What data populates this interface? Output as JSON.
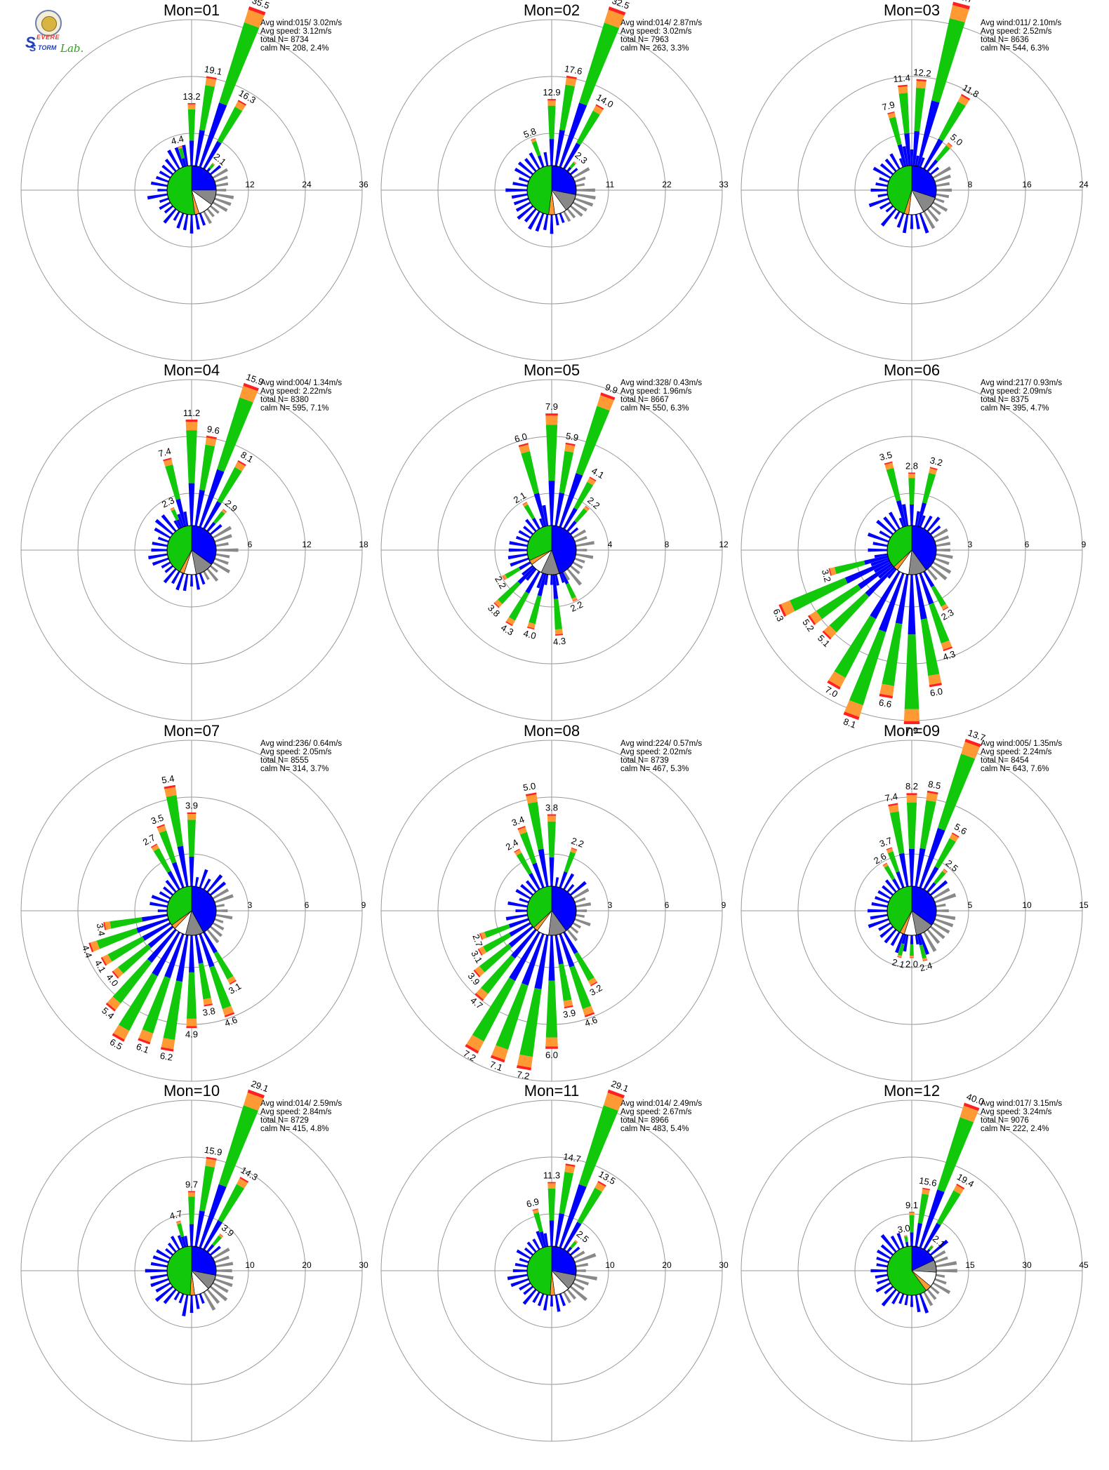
{
  "logo": {
    "s1": "S",
    "w1": "EVERE",
    "s2": "S",
    "w2": "TORM",
    "lab": "Lab."
  },
  "colors": {
    "blue": "#0000ff",
    "green": "#12c80a",
    "orange": "#ff9933",
    "red": "#ff2020",
    "gray": "#888888",
    "axis": "#999999"
  },
  "chart_data": [
    {
      "type": "polar",
      "title": "Mon=01",
      "stats": {
        "avg_wind": "Avg wind:015/ 3.02m/s",
        "avg_speed": "Avg speed: 3.12m/s",
        "total": "total N=      8734",
        "calm": "calm N=    208,   2.4%"
      },
      "rmax": 36,
      "ring_labels": [
        "12",
        "24",
        "36"
      ],
      "bars": [
        {
          "dir": 345,
          "value": 4.4,
          "label": "4.4"
        },
        {
          "dir": 0,
          "value": 13.2,
          "label": "13.2"
        },
        {
          "dir": 10,
          "value": 19.1,
          "label": "19.1"
        },
        {
          "dir": 20,
          "value": 35.5,
          "label": "35.5"
        },
        {
          "dir": 30,
          "value": 16.3,
          "label": "16.3"
        },
        {
          "dir": 40,
          "value": 2.1,
          "label": "2.1"
        }
      ],
      "pie": [
        {
          "c": "blue",
          "v": 25
        },
        {
          "c": "gray",
          "v": 10
        },
        {
          "c": "white",
          "v": 10
        },
        {
          "c": "orange",
          "v": 3
        },
        {
          "c": "green",
          "v": 52
        }
      ]
    },
    {
      "type": "polar",
      "title": "Mon=02",
      "stats": {
        "avg_wind": "Avg wind:014/ 2.87m/s",
        "avg_speed": "Avg speed: 3.02m/s",
        "total": "total N=      7963",
        "calm": "calm N=    263,   3.3%"
      },
      "rmax": 33,
      "ring_labels": [
        "11",
        "22",
        "33"
      ],
      "bars": [
        {
          "dir": 340,
          "value": 5.8,
          "label": "5.8"
        },
        {
          "dir": 0,
          "value": 12.9,
          "label": "12.9"
        },
        {
          "dir": 10,
          "value": 17.6,
          "label": "17.6"
        },
        {
          "dir": 20,
          "value": 32.5,
          "label": "32.5"
        },
        {
          "dir": 30,
          "value": 14.0,
          "label": "14.0"
        },
        {
          "dir": 40,
          "value": 2.3,
          "label": "2.3"
        }
      ],
      "pie": [
        {
          "c": "blue",
          "v": 28
        },
        {
          "c": "gray",
          "v": 12
        },
        {
          "c": "white",
          "v": 8
        },
        {
          "c": "orange",
          "v": 4
        },
        {
          "c": "green",
          "v": 48
        }
      ]
    },
    {
      "type": "polar",
      "title": "Mon=03",
      "stats": {
        "avg_wind": "Avg wind:011/ 2.10m/s",
        "avg_speed": "Avg speed: 2.52m/s",
        "total": "total N=      8636",
        "calm": "calm N=    544,   6.3%"
      },
      "rmax": 24,
      "ring_labels": [
        "8",
        "16",
        "24"
      ],
      "bars": [
        {
          "dir": 345,
          "value": 7.9,
          "label": "7.9"
        },
        {
          "dir": 355,
          "value": 11.4,
          "label": "11.4"
        },
        {
          "dir": 5,
          "value": 12.2,
          "label": "12.2"
        },
        {
          "dir": 15,
          "value": 23.7,
          "label": "23.7"
        },
        {
          "dir": 30,
          "value": 11.8,
          "label": "11.8"
        },
        {
          "dir": 40,
          "value": 5.0,
          "label": "5.0"
        }
      ],
      "pie": [
        {
          "c": "blue",
          "v": 30
        },
        {
          "c": "gray",
          "v": 12
        },
        {
          "c": "white",
          "v": 10
        },
        {
          "c": "orange",
          "v": 3
        },
        {
          "c": "green",
          "v": 45
        }
      ]
    },
    {
      "type": "polar",
      "title": "Mon=04",
      "stats": {
        "avg_wind": "Avg wind:004/ 1.34m/s",
        "avg_speed": "Avg speed: 2.22m/s",
        "total": "total N=      8380",
        "calm": "calm N=    595,   7.1%"
      },
      "rmax": 18,
      "ring_labels": [
        "6",
        "12",
        "18"
      ],
      "bars": [
        {
          "dir": 335,
          "value": 2.3,
          "label": "2.3"
        },
        {
          "dir": 345,
          "value": 7.4,
          "label": "7.4"
        },
        {
          "dir": 0,
          "value": 11.2,
          "label": "11.2"
        },
        {
          "dir": 10,
          "value": 9.6,
          "label": "9.6"
        },
        {
          "dir": 20,
          "value": 15.9,
          "label": "15.9"
        },
        {
          "dir": 30,
          "value": 8.1,
          "label": "8.1"
        },
        {
          "dir": 40,
          "value": 2.9,
          "label": "2.9"
        }
      ],
      "pie": [
        {
          "c": "blue",
          "v": 35
        },
        {
          "c": "gray",
          "v": 12
        },
        {
          "c": "white",
          "v": 8
        },
        {
          "c": "orange",
          "v": 3
        },
        {
          "c": "green",
          "v": 42
        }
      ]
    },
    {
      "type": "polar",
      "title": "Mon=05",
      "stats": {
        "avg_wind": "Avg wind:328/ 0.43m/s",
        "avg_speed": "Avg speed: 1.96m/s",
        "total": "total N=      8667",
        "calm": "calm N=    550,   6.3%"
      },
      "rmax": 12,
      "ring_labels": [
        "4",
        "8",
        "12"
      ],
      "bars": [
        {
          "dir": 330,
          "value": 2.1,
          "label": "2.1"
        },
        {
          "dir": 345,
          "value": 6.0,
          "label": "6.0"
        },
        {
          "dir": 0,
          "value": 7.9,
          "label": "7.9"
        },
        {
          "dir": 10,
          "value": 5.9,
          "label": "5.9"
        },
        {
          "dir": 20,
          "value": 9.9,
          "label": "9.9"
        },
        {
          "dir": 30,
          "value": 4.1,
          "label": "4.1"
        },
        {
          "dir": 40,
          "value": 2.2,
          "label": "2.2"
        },
        {
          "dir": 155,
          "value": 2.2,
          "label": "2.2"
        },
        {
          "dir": 175,
          "value": 4.3,
          "label": "4.3"
        },
        {
          "dir": 195,
          "value": 4.0,
          "label": "4.0"
        },
        {
          "dir": 210,
          "value": 4.3,
          "label": "4.3"
        },
        {
          "dir": 225,
          "value": 3.8,
          "label": "3.8"
        },
        {
          "dir": 240,
          "value": 2.2,
          "label": "2.2"
        }
      ],
      "pie": [
        {
          "c": "blue",
          "v": 45
        },
        {
          "c": "gray",
          "v": 12
        },
        {
          "c": "white",
          "v": 8
        },
        {
          "c": "orange",
          "v": 3
        },
        {
          "c": "green",
          "v": 32
        }
      ]
    },
    {
      "type": "polar",
      "title": "Mon=06",
      "stats": {
        "avg_wind": "Avg wind:217/ 0.93m/s",
        "avg_speed": "Avg speed: 2.09m/s",
        "total": "total N=      8375",
        "calm": "calm N=    395,   4.7%"
      },
      "rmax": 9,
      "ring_labels": [
        "3",
        "6",
        "9"
      ],
      "bars": [
        {
          "dir": 345,
          "value": 3.5,
          "label": "3.5"
        },
        {
          "dir": 0,
          "value": 2.8,
          "label": "2.8"
        },
        {
          "dir": 15,
          "value": 3.2,
          "label": "3.2"
        },
        {
          "dir": 150,
          "value": 2.3,
          "label": "2.3"
        },
        {
          "dir": 160,
          "value": 4.3,
          "label": "4.3"
        },
        {
          "dir": 170,
          "value": 6.0,
          "label": "6.0"
        },
        {
          "dir": 180,
          "value": 7.9,
          "label": "7.9"
        },
        {
          "dir": 190,
          "value": 6.6,
          "label": "6.6"
        },
        {
          "dir": 200,
          "value": 8.1,
          "label": "8.1"
        },
        {
          "dir": 210,
          "value": 7.0,
          "label": "7.0"
        },
        {
          "dir": 225,
          "value": 5.1,
          "label": "5.1"
        },
        {
          "dir": 235,
          "value": 5.2,
          "label": "5.2"
        },
        {
          "dir": 245,
          "value": 6.3,
          "label": "6.3"
        },
        {
          "dir": 255,
          "value": 3.2,
          "label": "3.2"
        }
      ],
      "pie": [
        {
          "c": "blue",
          "v": 40
        },
        {
          "c": "gray",
          "v": 12
        },
        {
          "c": "white",
          "v": 8
        },
        {
          "c": "orange",
          "v": 3
        },
        {
          "c": "green",
          "v": 37
        }
      ]
    },
    {
      "type": "polar",
      "title": "Mon=07",
      "stats": {
        "avg_wind": "Avg wind:236/ 0.64m/s",
        "avg_speed": "Avg speed: 2.05m/s",
        "total": "total N=      8555",
        "calm": "calm N=    314,   3.7%"
      },
      "rmax": 9,
      "ring_labels": [
        "3",
        "6",
        "9"
      ],
      "bars": [
        {
          "dir": 330,
          "value": 2.7,
          "label": "2.7"
        },
        {
          "dir": 340,
          "value": 3.5,
          "label": "3.5"
        },
        {
          "dir": 350,
          "value": 5.4,
          "label": "5.4"
        },
        {
          "dir": 0,
          "value": 3.9,
          "label": "3.9"
        },
        {
          "dir": 150,
          "value": 3.1,
          "label": "3.1"
        },
        {
          "dir": 160,
          "value": 4.6,
          "label": "4.6"
        },
        {
          "dir": 170,
          "value": 3.8,
          "label": "3.8"
        },
        {
          "dir": 180,
          "value": 4.9,
          "label": "4.9"
        },
        {
          "dir": 190,
          "value": 6.2,
          "label": "6.2"
        },
        {
          "dir": 200,
          "value": 6.1,
          "label": "6.1"
        },
        {
          "dir": 210,
          "value": 6.5,
          "label": "6.5"
        },
        {
          "dir": 220,
          "value": 5.4,
          "label": "5.4"
        },
        {
          "dir": 230,
          "value": 4.0,
          "label": "4.0"
        },
        {
          "dir": 240,
          "value": 4.1,
          "label": "4.1"
        },
        {
          "dir": 250,
          "value": 4.4,
          "label": "4.4"
        },
        {
          "dir": 260,
          "value": 3.4,
          "label": "3.4"
        }
      ],
      "pie": [
        {
          "c": "blue",
          "v": 42
        },
        {
          "c": "gray",
          "v": 12
        },
        {
          "c": "white",
          "v": 8
        },
        {
          "c": "orange",
          "v": 3
        },
        {
          "c": "green",
          "v": 35
        }
      ]
    },
    {
      "type": "polar",
      "title": "Mon=08",
      "stats": {
        "avg_wind": "Avg wind:224/ 0.57m/s",
        "avg_speed": "Avg speed: 2.02m/s",
        "total": "total N=      8739",
        "calm": "calm N=    467,   5.3%"
      },
      "rmax": 9,
      "ring_labels": [
        "3",
        "6",
        "9"
      ],
      "bars": [
        {
          "dir": 330,
          "value": 2.4,
          "label": "2.4"
        },
        {
          "dir": 340,
          "value": 3.4,
          "label": "3.4"
        },
        {
          "dir": 350,
          "value": 5.0,
          "label": "5.0"
        },
        {
          "dir": 0,
          "value": 3.8,
          "label": "3.8"
        },
        {
          "dir": 20,
          "value": 2.2,
          "label": "2.2"
        },
        {
          "dir": 150,
          "value": 3.2,
          "label": "3.2"
        },
        {
          "dir": 160,
          "value": 4.6,
          "label": "4.6"
        },
        {
          "dir": 170,
          "value": 3.9,
          "label": "3.9"
        },
        {
          "dir": 180,
          "value": 6.0,
          "label": "6.0"
        },
        {
          "dir": 190,
          "value": 7.2,
          "label": "7.2"
        },
        {
          "dir": 200,
          "value": 7.1,
          "label": "7.1"
        },
        {
          "dir": 210,
          "value": 7.2,
          "label": "7.2"
        },
        {
          "dir": 220,
          "value": 4.7,
          "label": "4.7"
        },
        {
          "dir": 230,
          "value": 3.9,
          "label": "3.9"
        },
        {
          "dir": 240,
          "value": 3.1,
          "label": "3.1"
        },
        {
          "dir": 250,
          "value": 2.7,
          "label": "2.7"
        }
      ],
      "pie": [
        {
          "c": "blue",
          "v": 40
        },
        {
          "c": "gray",
          "v": 12
        },
        {
          "c": "white",
          "v": 8
        },
        {
          "c": "orange",
          "v": 3
        },
        {
          "c": "green",
          "v": 37
        }
      ]
    },
    {
      "type": "polar",
      "title": "Mon=09",
      "stats": {
        "avg_wind": "Avg wind:005/ 1.35m/s",
        "avg_speed": "Avg speed: 2.24m/s",
        "total": "total N=      8454",
        "calm": "calm N=    643,   7.6%"
      },
      "rmax": 15,
      "ring_labels": [
        "5",
        "10",
        "15"
      ],
      "bars": [
        {
          "dir": 330,
          "value": 2.6,
          "label": "2.6"
        },
        {
          "dir": 340,
          "value": 3.7,
          "label": "3.7"
        },
        {
          "dir": 350,
          "value": 7.4,
          "label": "7.4"
        },
        {
          "dir": 0,
          "value": 8.2,
          "label": "8.2"
        },
        {
          "dir": 10,
          "value": 8.5,
          "label": "8.5"
        },
        {
          "dir": 20,
          "value": 13.7,
          "label": "13.7"
        },
        {
          "dir": 30,
          "value": 5.6,
          "label": "5.6"
        },
        {
          "dir": 40,
          "value": 2.5,
          "label": "2.5"
        },
        {
          "dir": 165,
          "value": 2.4,
          "label": "2.4"
        },
        {
          "dir": 180,
          "value": 2.0,
          "label": "2.0"
        },
        {
          "dir": 195,
          "value": 2.1,
          "label": "2.1"
        }
      ],
      "pie": [
        {
          "c": "blue",
          "v": 35
        },
        {
          "c": "gray",
          "v": 12
        },
        {
          "c": "white",
          "v": 8
        },
        {
          "c": "orange",
          "v": 3
        },
        {
          "c": "green",
          "v": 42
        }
      ]
    },
    {
      "type": "polar",
      "title": "Mon=10",
      "stats": {
        "avg_wind": "Avg wind:014/ 2.59m/s",
        "avg_speed": "Avg speed: 2.84m/s",
        "total": "total N=      8729",
        "calm": "calm N=    415,   4.8%"
      },
      "rmax": 30,
      "ring_labels": [
        "10",
        "20",
        "30"
      ],
      "bars": [
        {
          "dir": 345,
          "value": 4.7,
          "label": "4.7"
        },
        {
          "dir": 0,
          "value": 9.7,
          "label": "9.7"
        },
        {
          "dir": 10,
          "value": 15.9,
          "label": "15.9"
        },
        {
          "dir": 20,
          "value": 29.1,
          "label": "29.1"
        },
        {
          "dir": 30,
          "value": 14.3,
          "label": "14.3"
        },
        {
          "dir": 40,
          "value": 3.9,
          "label": "3.9"
        }
      ],
      "pie": [
        {
          "c": "blue",
          "v": 28
        },
        {
          "c": "gray",
          "v": 10
        },
        {
          "c": "white",
          "v": 10
        },
        {
          "c": "orange",
          "v": 3
        },
        {
          "c": "green",
          "v": 49
        }
      ]
    },
    {
      "type": "polar",
      "title": "Mon=11",
      "stats": {
        "avg_wind": "Avg wind:014/ 2.49m/s",
        "avg_speed": "Avg speed: 2.67m/s",
        "total": "total N=      8966",
        "calm": "calm N=    483,   5.4%"
      },
      "rmax": 30,
      "ring_labels": [
        "10",
        "20",
        "30"
      ],
      "bars": [
        {
          "dir": 345,
          "value": 6.9,
          "label": "6.9"
        },
        {
          "dir": 0,
          "value": 11.3,
          "label": "11.3"
        },
        {
          "dir": 10,
          "value": 14.7,
          "label": "14.7"
        },
        {
          "dir": 20,
          "value": 29.1,
          "label": "29.1"
        },
        {
          "dir": 30,
          "value": 13.5,
          "label": "13.5"
        },
        {
          "dir": 40,
          "value": 2.5,
          "label": "2.5"
        }
      ],
      "pie": [
        {
          "c": "blue",
          "v": 28
        },
        {
          "c": "gray",
          "v": 10
        },
        {
          "c": "white",
          "v": 10
        },
        {
          "c": "orange",
          "v": 3
        },
        {
          "c": "green",
          "v": 49
        }
      ]
    },
    {
      "type": "polar",
      "title": "Mon=12",
      "stats": {
        "avg_wind": "Avg wind:017/ 3.15m/s",
        "avg_speed": "Avg speed: 3.24m/s",
        "total": "total N=      9076",
        "calm": "calm N=    222,   2.4%"
      },
      "rmax": 45,
      "ring_labels": [
        "15",
        "30",
        "45"
      ],
      "bars": [
        {
          "dir": 350,
          "value": 3.0,
          "label": "3.0"
        },
        {
          "dir": 0,
          "value": 9.1,
          "label": "9.1"
        },
        {
          "dir": 10,
          "value": 15.6,
          "label": "15.6"
        },
        {
          "dir": 20,
          "value": 40.0,
          "label": "40.0"
        },
        {
          "dir": 30,
          "value": 19.4,
          "label": "19.4"
        },
        {
          "dir": 40,
          "value": 2.1,
          "label": "2.1"
        }
      ],
      "pie": [
        {
          "c": "blue",
          "v": 18
        },
        {
          "c": "gray",
          "v": 8
        },
        {
          "c": "white",
          "v": 10
        },
        {
          "c": "orange",
          "v": 4
        },
        {
          "c": "green",
          "v": 60
        }
      ]
    }
  ]
}
